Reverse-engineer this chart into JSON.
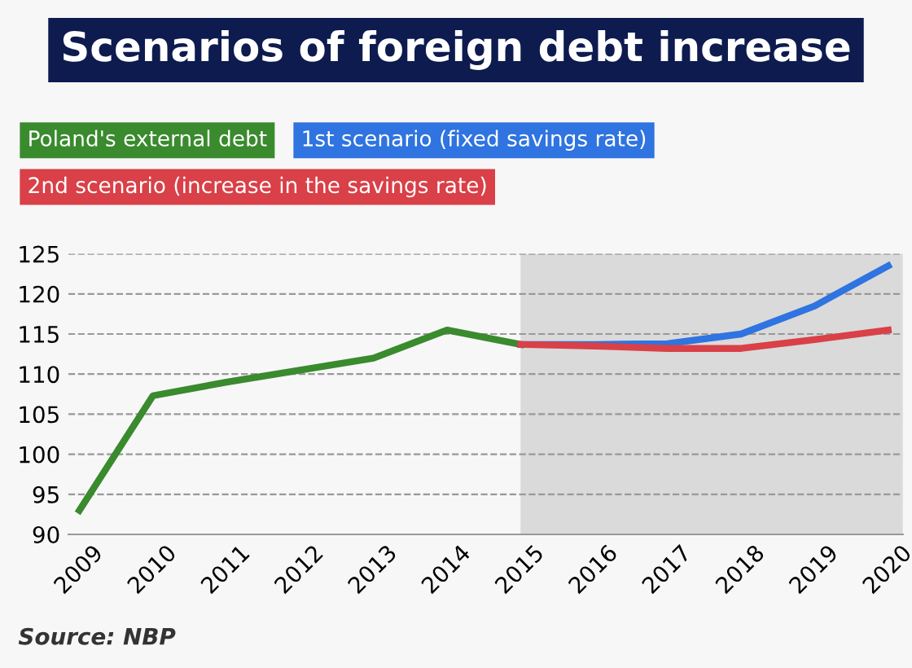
{
  "chart_data": {
    "type": "line",
    "title": "Scenarios of foreign debt increase",
    "x": [
      2009,
      2010,
      2011,
      2012,
      2013,
      2014,
      2015,
      2016,
      2017,
      2018,
      2019,
      2020
    ],
    "series": [
      {
        "name": "Poland's external debt",
        "color": "#3a8a2e",
        "values": [
          93,
          107.3,
          109,
          110.5,
          112,
          115.5,
          113.7,
          null,
          null,
          null,
          null,
          null
        ]
      },
      {
        "name": "1st scenario (fixed savings rate)",
        "color": "#2f74e0",
        "values": [
          null,
          null,
          null,
          null,
          null,
          null,
          113.7,
          113.7,
          113.8,
          115,
          118.5,
          123.5
        ]
      },
      {
        "name": "2nd scenario (increase in the savings rate)",
        "color": "#d94048",
        "values": [
          null,
          null,
          null,
          null,
          null,
          null,
          113.7,
          113.5,
          113.2,
          113.2,
          114.3,
          115.5
        ]
      }
    ],
    "xlim": [
      2008.85,
      2020.2
    ],
    "xticks": [
      2009,
      2010,
      2011,
      2012,
      2013,
      2014,
      2015,
      2016,
      2017,
      2018,
      2019,
      2020
    ],
    "ylim": [
      90,
      125
    ],
    "yticks": [
      90,
      95,
      100,
      105,
      110,
      115,
      120,
      125
    ],
    "bands": [
      {
        "axis": "x",
        "from": 2015,
        "to": 2020.2,
        "color": "#dadada"
      }
    ],
    "grid": "y",
    "legend": "top",
    "marker": "none",
    "line_style": "solid",
    "annotations": [
      "Source: NBP"
    ]
  }
}
